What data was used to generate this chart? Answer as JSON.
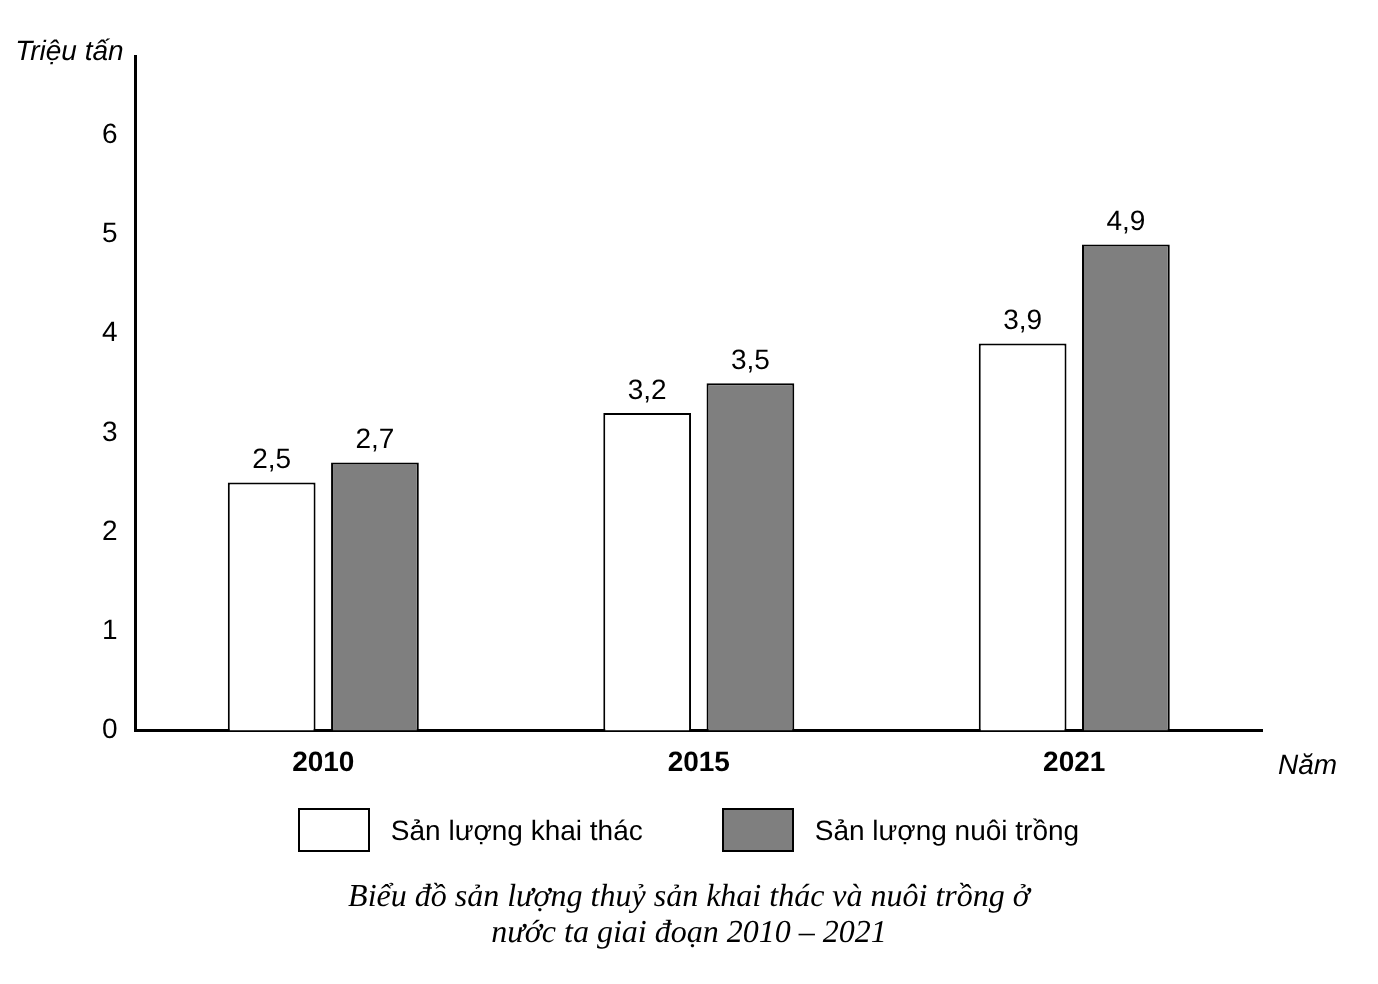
{
  "chart_data": {
    "type": "bar",
    "title": "Biểu đồ sản lượng thuỷ sản khai thác và nuôi trồng ở nước ta giai đoạn 2010 – 2021",
    "xlabel": "Năm",
    "ylabel": "Triệu tấn",
    "categories": [
      "2010",
      "2015",
      "2021"
    ],
    "series": [
      {
        "name": "Sản lượng khai thác",
        "color": "#ffffff",
        "values": [
          2.5,
          3.2,
          3.9
        ],
        "value_labels": [
          "2,5",
          "3,2",
          "3,9"
        ]
      },
      {
        "name": "Sản lượng nuôi trồng",
        "color": "#7f7f7f",
        "values": [
          2.7,
          3.5,
          4.9
        ],
        "value_labels": [
          "2,7",
          "3,5",
          "4,9"
        ]
      }
    ],
    "ylim": [
      0,
      6.8
    ],
    "yticks": [
      0,
      1,
      2,
      3,
      4,
      5,
      6
    ],
    "grid": false,
    "legend": "bottom"
  }
}
